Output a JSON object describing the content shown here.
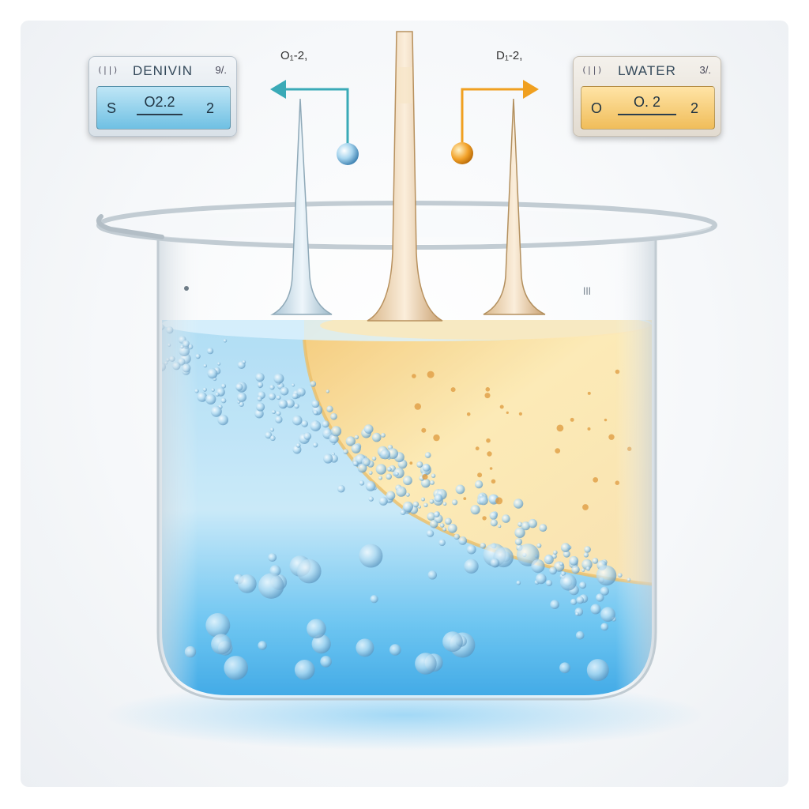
{
  "left_panel": {
    "tag": "(||)",
    "title": "DENIVIN",
    "corner": "9/.",
    "readout_prefix": "S",
    "readout_value": "O2.2",
    "readout_suffix": "2",
    "color": "#6fc0e3"
  },
  "right_panel": {
    "tag": "",
    "title": "LWATER",
    "corner": "3/.",
    "readout_prefix": "O",
    "readout_value": "O. 2",
    "readout_suffix": "2",
    "color": "#f0bd5a"
  },
  "formula_left": "O₁-2,",
  "formula_right": "D₁-2,",
  "colors": {
    "blue_liquid": "#2aa8e8",
    "amber_liquid": "#f3c86a",
    "arrow_teal": "#3aaab7",
    "arrow_orange": "#f0a020"
  }
}
